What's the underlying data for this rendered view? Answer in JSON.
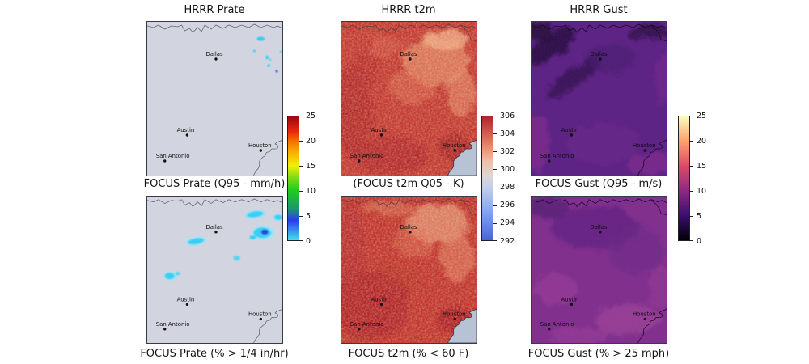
{
  "columns": [
    {
      "top_title": "HRRR Prate",
      "mid_title": "FOCUS Prate (Q95 - mm/h)",
      "caption": "FOCUS Prate (% > 1/4 in/hr)",
      "colorbar": {
        "ticks_bottom_to_top": [
          "0",
          "5",
          "10",
          "15",
          "20",
          "25"
        ],
        "stops": [
          [
            "#45e1e6",
            "0%"
          ],
          [
            "#2b3af0",
            "16%"
          ],
          [
            "#1b9a6a",
            "26%"
          ],
          [
            "#1ecb20",
            "40%"
          ],
          [
            "#8edc10",
            "52%"
          ],
          [
            "#f0f00a",
            "60%"
          ],
          [
            "#f8a800",
            "72%"
          ],
          [
            "#f57000",
            "80%"
          ],
          [
            "#e82810",
            "88%"
          ],
          [
            "#9c0510",
            "100%"
          ]
        ]
      }
    },
    {
      "top_title": "HRRR t2m",
      "mid_title": "(FOCUS t2m Q05 - K)",
      "caption": "FOCUS t2m (% < 60 F)",
      "colorbar": {
        "ticks_bottom_to_top": [
          "292",
          "294",
          "296",
          "298",
          "300",
          "302",
          "304",
          "306"
        ],
        "stops": [
          [
            "#4a63d3",
            "0%"
          ],
          [
            "#6b8cea",
            "14%"
          ],
          [
            "#96b3f2",
            "29%"
          ],
          [
            "#c3cfed",
            "43%"
          ],
          [
            "#dcd7d4",
            "52%"
          ],
          [
            "#eebfa6",
            "64%"
          ],
          [
            "#ec9f7f",
            "71%"
          ],
          [
            "#d35f4d",
            "86%"
          ],
          [
            "#b0242e",
            "100%"
          ]
        ]
      }
    },
    {
      "top_title": "HRRR Gust",
      "mid_title": "FOCUS Gust (Q95 - m/s)",
      "caption": "FOCUS Gust (% > 25 mph)",
      "colorbar": {
        "ticks_bottom_to_top": [
          "0",
          "5",
          "10",
          "15",
          "20",
          "25"
        ],
        "stops": [
          [
            "#000005",
            "0%"
          ],
          [
            "#3a0f6f",
            "20%"
          ],
          [
            "#8c2981",
            "40%"
          ],
          [
            "#dd4a69",
            "60%"
          ],
          [
            "#fca06c",
            "80%"
          ],
          [
            "#fbfcbf",
            "100%"
          ]
        ]
      }
    }
  ],
  "cities": [
    {
      "name": "Dallas",
      "fx": 0.51,
      "fy": 0.24
    },
    {
      "name": "Austin",
      "fx": 0.3,
      "fy": 0.73
    },
    {
      "name": "San Antonio",
      "fx": 0.13,
      "fy": 0.9
    },
    {
      "name": "Houston",
      "fx": 0.84,
      "fy": 0.83
    }
  ],
  "map_colors": {
    "prate_background": "#d2d5e0",
    "precip_cell_cyan": "#38cdf0",
    "precip_cell_core_blue": "#2b46dd",
    "t2m_base_red": "#c23a30",
    "gulf_water": "#b7c2d4",
    "gust_top_base_purple": "#5e2386",
    "gust_bottom_base_magenta": "#83308f",
    "boundary_gray": "#676774"
  },
  "chart_data": [
    {
      "type": "heatmap",
      "panel": "top-left",
      "title": "HRRR Prate",
      "units": "mm/h",
      "colormap": "cyan-blue-green-yellow-red (jet-like)",
      "colorbar_ticks": [
        0,
        5,
        10,
        15,
        20,
        25
      ],
      "region": "Texas with Dallas, Austin, San Antonio, Houston",
      "summary": "Field mostly 0 mm/h (blank gray); a few small light-precip cells (~1-5 mm/h) northeast of Dallas near the NE panel edge."
    },
    {
      "type": "heatmap",
      "panel": "bottom-left",
      "title": "FOCUS Prate (Q95 - mm/h)",
      "units": "mm/h",
      "colormap": "cyan-blue-green-yellow-red (jet-like)",
      "colorbar_ticks": [
        0,
        5,
        10,
        15,
        20,
        25
      ],
      "region": "Texas with Dallas, Austin, San Antonio, Houston",
      "summary": "Mostly 0 mm/h; larger scattered shower blobs (~1-6 mm/h) NE of Dallas (one with darker ~5 core), west of Dallas, one mid-panel, and one in the west-central area."
    },
    {
      "type": "heatmap",
      "panel": "top-middle",
      "title": "HRRR t2m",
      "units": "K",
      "colormap": "coolwarm",
      "colorbar_ticks": [
        292,
        294,
        296,
        298,
        300,
        302,
        304,
        306
      ],
      "region": "Texas with Dallas, Austin, San Antonio, Houston",
      "summary": "2-m temperature ~300-307 K everywhere (deep red with lighter salmon mottling toward NE/center); Gulf of Mexico in SE corner shown light blue-gray."
    },
    {
      "type": "heatmap",
      "panel": "bottom-middle",
      "title": "(FOCUS t2m Q05 - K)",
      "units": "K",
      "colormap": "coolwarm",
      "colorbar_ticks": [
        292,
        294,
        296,
        298,
        300,
        302,
        304,
        306
      ],
      "region": "Texas with Dallas, Austin, San Antonio, Houston",
      "summary": "Similar warm field ~300-306 K; darker red (warmer) across SW half near Austin/San Antonio and around Houston; lighter salmon toward NE."
    },
    {
      "type": "heatmap",
      "panel": "top-right",
      "title": "HRRR Gust",
      "units": "m/s",
      "colormap": "magma",
      "colorbar_ticks": [
        0,
        5,
        10,
        15,
        20,
        25
      ],
      "region": "Texas with Dallas, Austin, San Antonio, Houston",
      "summary": "Wind gusts roughly 5-12 m/s: dark purple diagonal banding in NW/center, slightly brighter purple-magenta along west edge and SE."
    },
    {
      "type": "heatmap",
      "panel": "bottom-right",
      "title": "FOCUS Gust (Q95 - m/s)",
      "units": "m/s",
      "colormap": "magma",
      "colorbar_ticks": [
        0,
        5,
        10,
        15,
        20,
        25
      ],
      "region": "Texas with Dallas, Austin, San Antonio, Houston",
      "summary": "Brighter magenta field (~8-14 m/s) than HRRR panel; darker violet patch north-center near Dallas, pinker values toward south and Houston coast."
    }
  ]
}
